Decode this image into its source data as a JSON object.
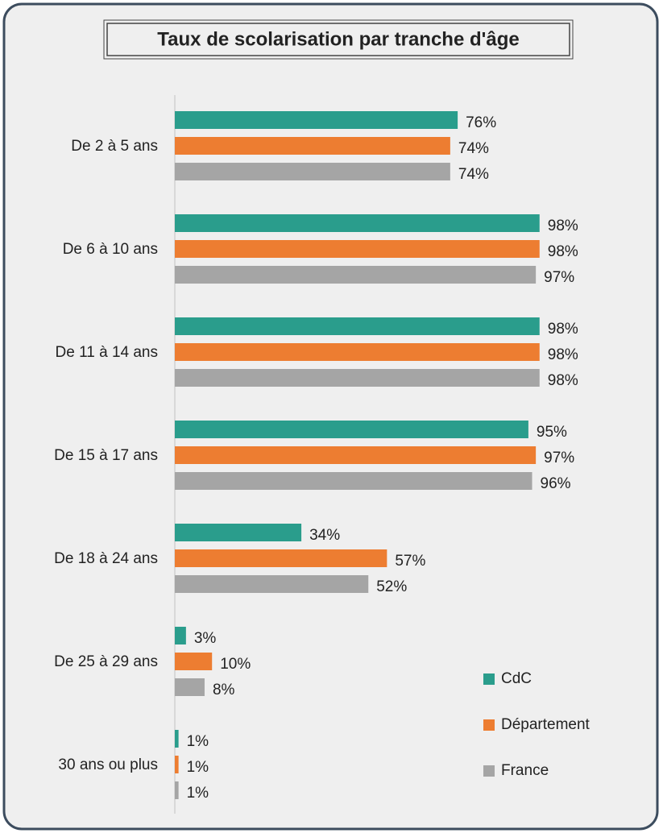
{
  "chart_data": {
    "type": "hbar",
    "title": "Taux de scolarisation par tranche d'âge",
    "categories": [
      "De 2 à 5 ans",
      "De 6 à 10 ans",
      "De 11 à 14 ans",
      "De 15 à 17 ans",
      "De 18 à 24 ans",
      "De 25 à 29 ans",
      "30 ans ou plus"
    ],
    "series": [
      {
        "name": "CdC",
        "color": "#2a9d8c",
        "values": [
          76,
          98,
          98,
          95,
          34,
          3,
          1
        ],
        "value_labels": [
          "76%",
          "98%",
          "98%",
          "95%",
          "34%",
          "3%",
          "1%"
        ]
      },
      {
        "name": "Département",
        "color": "#ed7d31",
        "values": [
          74,
          98,
          98,
          97,
          57,
          10,
          1
        ],
        "value_labels": [
          "74%",
          "98%",
          "98%",
          "97%",
          "57%",
          "10%",
          "1%"
        ]
      },
      {
        "name": "France",
        "color": "#a5a5a5",
        "values": [
          74,
          97,
          98,
          96,
          52,
          8,
          1
        ],
        "value_labels": [
          "74%",
          "97%",
          "98%",
          "96%",
          "52%",
          "8%",
          "1%"
        ]
      }
    ],
    "xlim": [
      0,
      100
    ],
    "legend": "lower right"
  }
}
